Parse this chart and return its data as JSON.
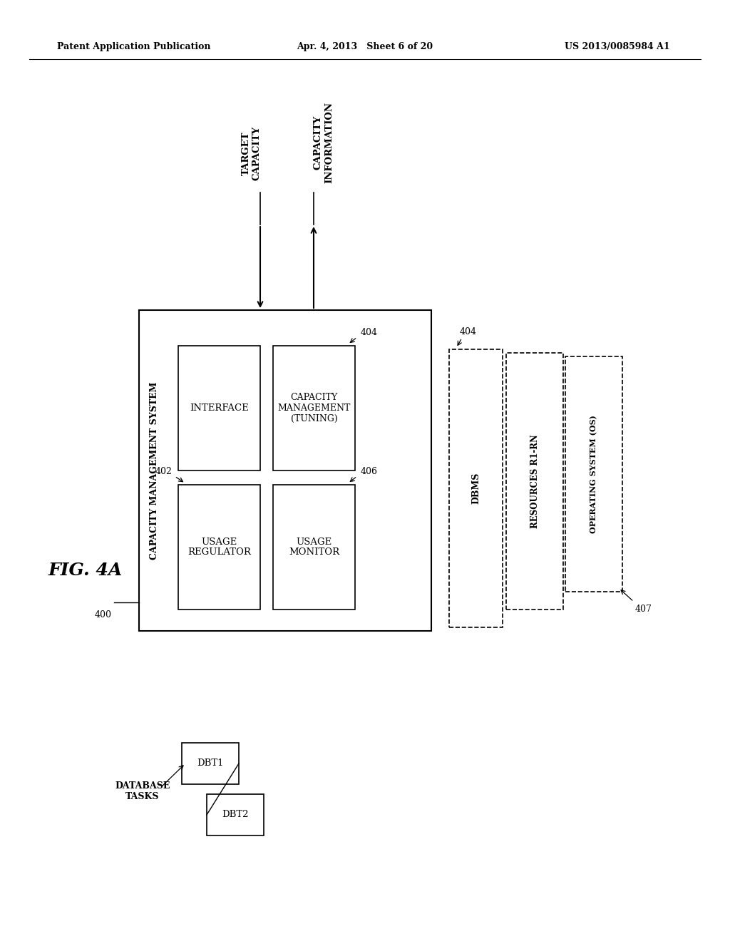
{
  "background_color": "#ffffff",
  "header_left": "Patent Application Publication",
  "header_center": "Apr. 4, 2013   Sheet 6 of 20",
  "header_right": "US 2013/0085984 A1",
  "fig_label": "FIG. 4A"
}
